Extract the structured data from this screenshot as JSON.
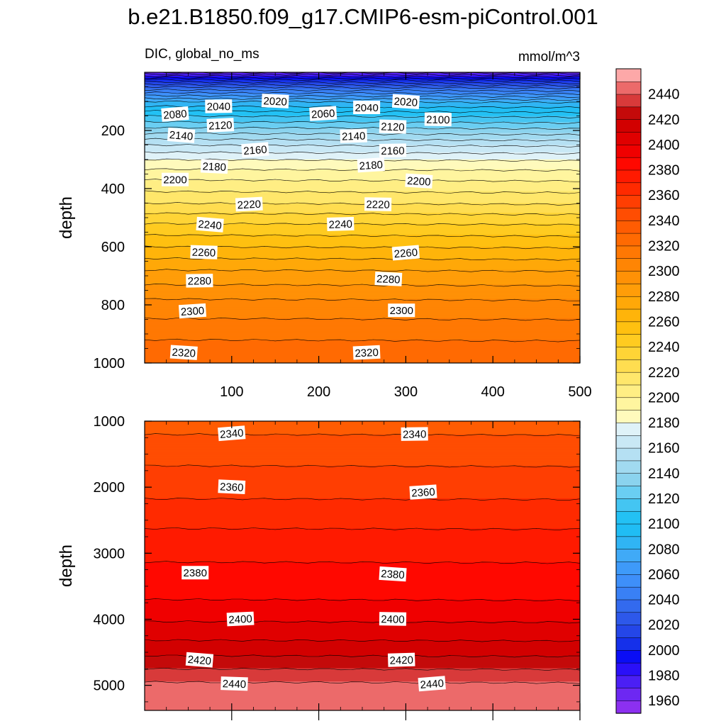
{
  "title": "b.e21.B1850.f09_g17.CMIP6-esm-piControl.001",
  "variable_label": "DIC, global_no_ms",
  "units_label": "mmol/m^3",
  "colorbar": {
    "levels": [
      1950,
      1960,
      1970,
      1980,
      1990,
      2000,
      2010,
      2020,
      2030,
      2040,
      2050,
      2060,
      2070,
      2080,
      2090,
      2100,
      2110,
      2120,
      2130,
      2140,
      2150,
      2160,
      2170,
      2180,
      2190,
      2200,
      2210,
      2220,
      2230,
      2240,
      2250,
      2260,
      2270,
      2280,
      2290,
      2300,
      2310,
      2320,
      2330,
      2340,
      2350,
      2360,
      2370,
      2380,
      2390,
      2400,
      2410,
      2420,
      2430,
      2440,
      2450
    ],
    "tick_labels": [
      "1960",
      "1980",
      "2000",
      "2020",
      "2040",
      "2060",
      "2080",
      "2100",
      "2120",
      "2140",
      "2160",
      "2180",
      "2200",
      "2220",
      "2240",
      "2260",
      "2280",
      "2300",
      "2320",
      "2340",
      "2360",
      "2380",
      "2400",
      "2420",
      "2440"
    ],
    "colors": [
      "#8c30f0",
      "#6d28f2",
      "#4b1ff5",
      "#2a10f8",
      "#0a0df5",
      "#1530ea",
      "#2446e8",
      "#2d58ea",
      "#336aee",
      "#3980f5",
      "#3e8ff9",
      "#3e9af9",
      "#40aaf7",
      "#30b4f4",
      "#20bdf4",
      "#23c1f4",
      "#44c5f2",
      "#6acef2",
      "#8bd3ee",
      "#a1daf0",
      "#b5e0f3",
      "#c9e8f5",
      "#dff2f8",
      "#fffabc",
      "#fff59f",
      "#ffee84",
      "#ffe76b",
      "#ffdd50",
      "#ffd436",
      "#ffcb20",
      "#ffc010",
      "#ffb40a",
      "#ffa808",
      "#ff9d08",
      "#ff9106",
      "#ff8504",
      "#ff7803",
      "#ff6a02",
      "#ff5c02",
      "#ff4d02",
      "#ff3e02",
      "#ff2a00",
      "#ff1a00",
      "#ff0800",
      "#f00000",
      "#e00000",
      "#d20000",
      "#c40a0a",
      "#d83a3a",
      "#ec6a6a",
      "#fda8a8"
    ]
  },
  "chart_data": [
    {
      "type": "contour",
      "panel": "upper",
      "xlabel": "",
      "ylabel": "depth",
      "xlim": [
        0,
        500
      ],
      "ylim": [
        1000,
        0
      ],
      "x_ticks": [
        "100",
        "200",
        "300",
        "400",
        "500"
      ],
      "y_ticks": [
        "200",
        "400",
        "600",
        "800",
        "1000"
      ],
      "profile_depth": [
        0,
        25,
        50,
        80,
        100,
        150,
        200,
        250,
        300,
        350,
        390,
        450,
        520,
        600,
        680,
        780,
        880,
        1000
      ],
      "profile_value": [
        1960,
        2000,
        2030,
        2060,
        2080,
        2110,
        2135,
        2160,
        2180,
        2195,
        2205,
        2220,
        2240,
        2260,
        2280,
        2300,
        2315,
        2330
      ],
      "contour_labels": [
        {
          "text": "2080",
          "x": 35,
          "y": 145
        },
        {
          "text": "2040",
          "x": 85,
          "y": 118
        },
        {
          "text": "2020",
          "x": 150,
          "y": 100
        },
        {
          "text": "2060",
          "x": 205,
          "y": 143
        },
        {
          "text": "2040",
          "x": 255,
          "y": 122
        },
        {
          "text": "2020",
          "x": 300,
          "y": 102
        },
        {
          "text": "2120",
          "x": 87,
          "y": 183
        },
        {
          "text": "2100",
          "x": 337,
          "y": 163
        },
        {
          "text": "2140",
          "x": 42,
          "y": 218
        },
        {
          "text": "2140",
          "x": 240,
          "y": 220
        },
        {
          "text": "2120",
          "x": 285,
          "y": 188
        },
        {
          "text": "2160",
          "x": 127,
          "y": 268
        },
        {
          "text": "2160",
          "x": 285,
          "y": 270
        },
        {
          "text": "2180",
          "x": 80,
          "y": 325
        },
        {
          "text": "2180",
          "x": 260,
          "y": 320
        },
        {
          "text": "2200",
          "x": 35,
          "y": 370
        },
        {
          "text": "2200",
          "x": 315,
          "y": 375
        },
        {
          "text": "2220",
          "x": 120,
          "y": 455
        },
        {
          "text": "2220",
          "x": 268,
          "y": 455
        },
        {
          "text": "2240",
          "x": 75,
          "y": 525
        },
        {
          "text": "2240",
          "x": 225,
          "y": 523
        },
        {
          "text": "2260",
          "x": 68,
          "y": 620
        },
        {
          "text": "2260",
          "x": 300,
          "y": 622
        },
        {
          "text": "2280",
          "x": 63,
          "y": 718
        },
        {
          "text": "2280",
          "x": 280,
          "y": 712
        },
        {
          "text": "2300",
          "x": 55,
          "y": 822
        },
        {
          "text": "2300",
          "x": 295,
          "y": 820
        },
        {
          "text": "2320",
          "x": 45,
          "y": 965
        },
        {
          "text": "2320",
          "x": 255,
          "y": 965
        }
      ]
    },
    {
      "type": "contour",
      "panel": "lower",
      "xlabel": "",
      "ylabel": "depth",
      "xlim": [
        0,
        500
      ],
      "ylim": [
        5380,
        1000
      ],
      "x_ticks": [],
      "y_ticks": [
        "1000",
        "2000",
        "3000",
        "4000",
        "5000"
      ],
      "profile_depth": [
        1000,
        1400,
        1950,
        2850,
        3700,
        4200,
        4550,
        4750,
        4950,
        5200,
        5380
      ],
      "profile_value": [
        2335,
        2345,
        2355,
        2375,
        2390,
        2405,
        2420,
        2430,
        2440,
        2445,
        2450
      ],
      "contour_labels": [
        {
          "text": "2340",
          "x": 100,
          "y": 1190
        },
        {
          "text": "2340",
          "x": 310,
          "y": 1200
        },
        {
          "text": "2360",
          "x": 100,
          "y": 2000
        },
        {
          "text": "2360",
          "x": 320,
          "y": 2080
        },
        {
          "text": "2380",
          "x": 58,
          "y": 3300
        },
        {
          "text": "2380",
          "x": 285,
          "y": 3320
        },
        {
          "text": "2400",
          "x": 110,
          "y": 4000
        },
        {
          "text": "2400",
          "x": 285,
          "y": 4000
        },
        {
          "text": "2420",
          "x": 63,
          "y": 4620
        },
        {
          "text": "2420",
          "x": 295,
          "y": 4620
        },
        {
          "text": "2440",
          "x": 103,
          "y": 4980
        },
        {
          "text": "2440",
          "x": 330,
          "y": 4980
        }
      ]
    }
  ]
}
